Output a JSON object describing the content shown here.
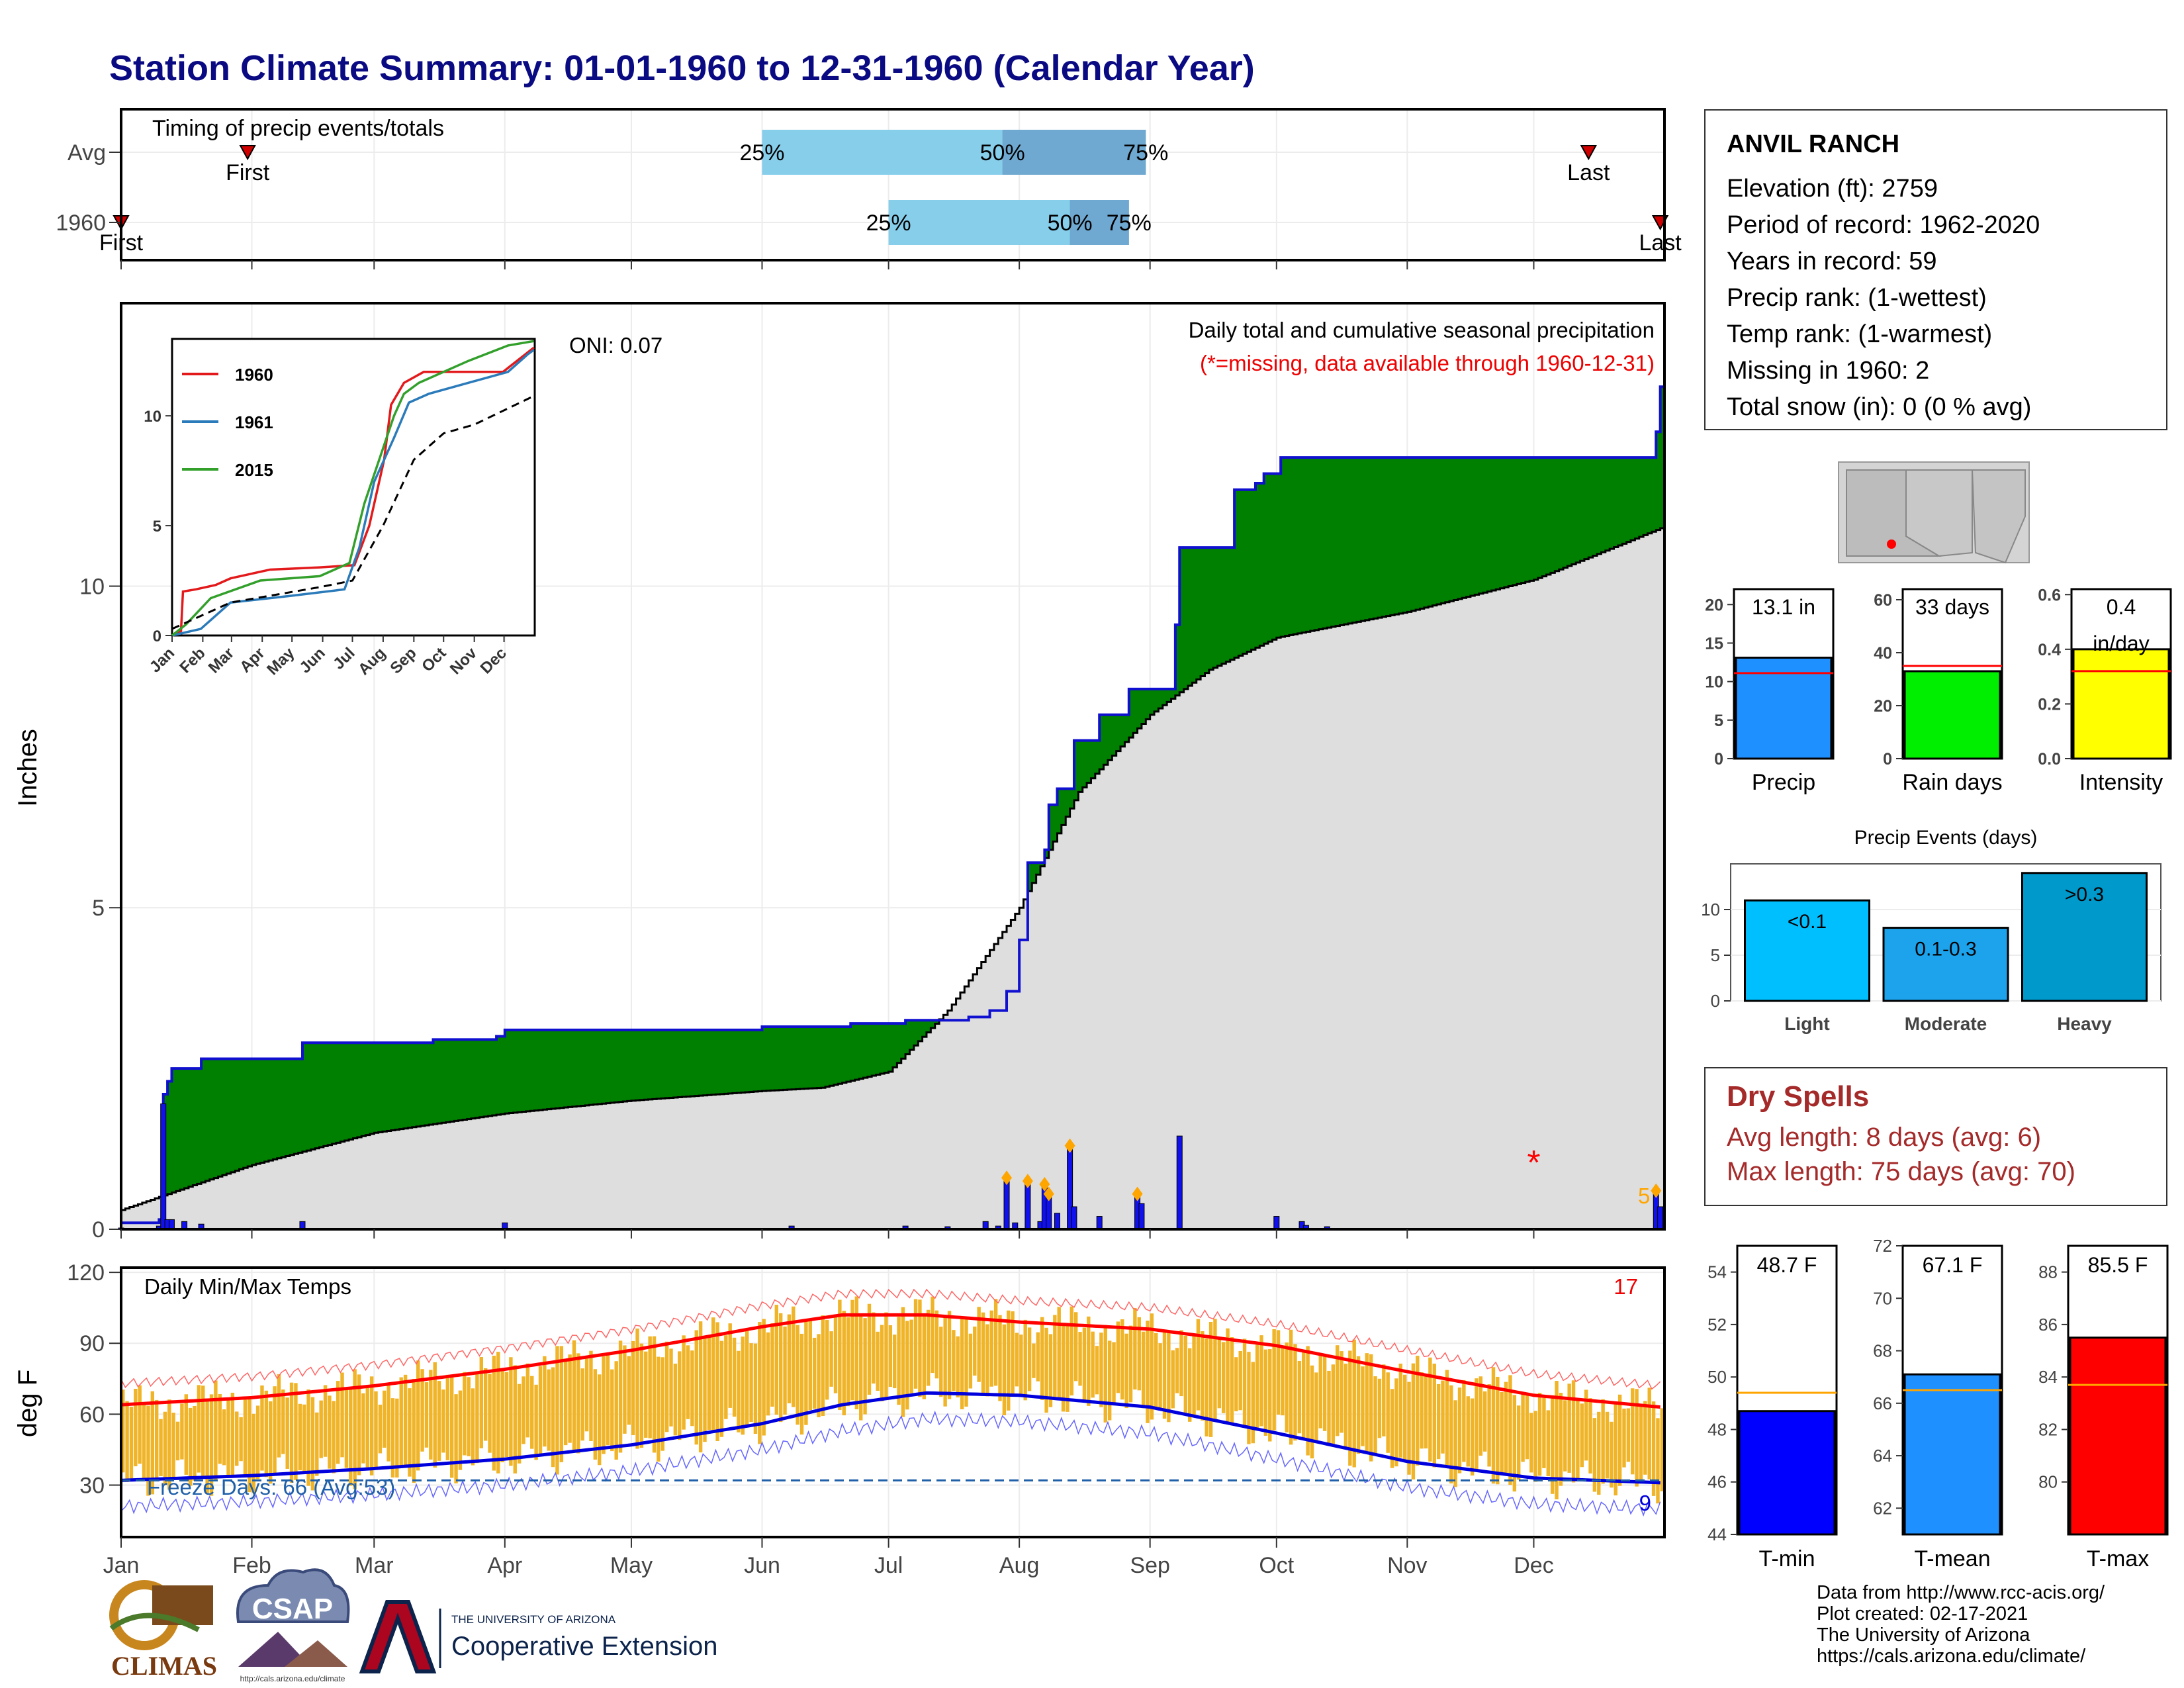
{
  "title": "Station Climate Summary: 01-01-1960 to 12-31-1960 (Calendar Year)",
  "timing_panel": {
    "title": "Timing of precip events/totals",
    "rows": [
      {
        "label": "Avg",
        "first_label": "First",
        "last_label": "Last",
        "first_date": "1960-01-31",
        "last_date": "1960-12-14",
        "p25": "1960-06-01",
        "p50": "1960-07-28",
        "p75": "1960-08-31"
      },
      {
        "label": "1960",
        "first_label": "First",
        "last_label": "Last",
        "first_date": "1960-01-01",
        "last_date": "1960-12-31",
        "p25": "1960-07-01",
        "p50": "1960-08-13",
        "p75": "1960-08-27"
      }
    ],
    "pct_labels": [
      "25%",
      "50%",
      "75%"
    ],
    "colors": {
      "outer": "#87ceeb",
      "inner": "#6fa8d0"
    }
  },
  "precip_panel": {
    "ylabel": "Inches",
    "yticks": [
      0,
      5,
      10
    ],
    "ylim": [
      0,
      14.4
    ],
    "subtitle": "Daily total and cumulative seasonal precipitation",
    "note": "(*=missing, data available through 1960-12-31)",
    "oni": "ONI: 0.07",
    "count_label": "5",
    "colors": {
      "above": "#008000",
      "below": "#8b5a00",
      "avg_fill": "#dedede",
      "line": "#1010d0",
      "missing": "#ff0000",
      "marker": "#ffa500"
    }
  },
  "inset": {
    "yticks": [
      0,
      5,
      10
    ],
    "months": [
      "Jan",
      "Feb",
      "Mar",
      "Apr",
      "May",
      "Jun",
      "Jul",
      "Aug",
      "Sep",
      "Oct",
      "Nov",
      "Dec"
    ],
    "legend": [
      {
        "name": "1960",
        "color": "#e31a1c"
      },
      {
        "name": "1961",
        "color": "#2b7bba"
      },
      {
        "name": "2015",
        "color": "#33a02c"
      }
    ]
  },
  "temp_panel": {
    "ylabel": "deg F",
    "yticks": [
      30,
      60,
      90,
      120
    ],
    "title": "Daily Min/Max Temps",
    "hot_count": "17",
    "cold_count": "9",
    "freeze_label": "Freeze Days: 66 (Avg:53)",
    "colors": {
      "bars": "#f0b428",
      "avg_max": "#ff0000",
      "avg_min": "#0000dd",
      "freeze": "#1f5fa8"
    }
  },
  "x_months": [
    "Jan",
    "Feb",
    "Mar",
    "Apr",
    "May",
    "Jun",
    "Jul",
    "Aug",
    "Sep",
    "Oct",
    "Nov",
    "Dec"
  ],
  "station": {
    "name": "ANVIL RANCH",
    "lines": [
      "Elevation (ft): 2759",
      "Period of record: 1962-2020",
      "Years in record: 59",
      "Precip rank:  (1-wettest)",
      "Temp rank:  (1-warmest)",
      "Missing in 1960: 2",
      "Total snow (in): 0 (0 % avg)"
    ]
  },
  "mini_bars": [
    {
      "label": "Precip",
      "value": 13.1,
      "avg": 11.1,
      "text": "13.1 in",
      "color": "#1e90ff",
      "yticks": [
        0,
        5,
        10,
        15,
        20
      ],
      "ymax": 22
    },
    {
      "label": "Rain days",
      "value": 33,
      "avg": 35,
      "text": "33 days",
      "color": "#00ee00",
      "yticks": [
        0,
        20,
        40,
        60
      ],
      "ymax": 64
    },
    {
      "label": "Intensity",
      "value": 0.4,
      "avg": 0.32,
      "text": "0.4\nin/day",
      "color": "#ffff00",
      "yticks": [
        "0.0",
        "0.2",
        "0.4",
        "0.6"
      ],
      "ymax": 0.62
    }
  ],
  "events": {
    "title": "Precip Events (days)",
    "categories": [
      "Light",
      "Moderate",
      "Heavy"
    ],
    "values": [
      11,
      8,
      14
    ],
    "bar_labels": [
      "<0.1",
      "0.1-0.3",
      ">0.3"
    ],
    "colors": [
      "#00bfff",
      "#1ca3ec",
      "#0099cc"
    ],
    "yticks": [
      0,
      5,
      10
    ]
  },
  "dry_spells": {
    "title": "Dry Spells",
    "lines": [
      "Avg length: 8 days (avg: 6)",
      "Max length: 75 days (avg: 70)"
    ]
  },
  "temp_bars": [
    {
      "label": "T-min",
      "value": 48.7,
      "avg": 49.4,
      "text": "48.7 F",
      "color": "#0000ff",
      "yticks": [
        44,
        46,
        48,
        50,
        52,
        54
      ],
      "ymin": 44,
      "ymax": 55
    },
    {
      "label": "T-mean",
      "value": 67.1,
      "avg": 66.5,
      "text": "67.1 F",
      "color": "#1e90ff",
      "yticks": [
        62,
        64,
        66,
        68,
        70,
        72
      ],
      "ymin": 61,
      "ymax": 72
    },
    {
      "label": "T-max",
      "value": 85.5,
      "avg": 83.7,
      "text": "85.5 F",
      "color": "#ff0000",
      "yticks": [
        80,
        82,
        84,
        86,
        88
      ],
      "ymin": 78,
      "ymax": 89
    }
  ],
  "credits": [
    "Data from http://www.rcc-acis.org/",
    "Plot created: 02-17-2021",
    "The University of Arizona",
    "https://cals.arizona.edu/climate/"
  ],
  "logos": {
    "climas": "CLIMAS",
    "csap": "CSAP",
    "csap_url": "http://cals.arizona.edu/climate",
    "ua_small": "THE UNIVERSITY OF ARIZONA",
    "ua_big": "Cooperative Extension"
  },
  "chart_data": {
    "type": "area",
    "title": "Station Climate Summary: 01-01-1960 to 12-31-1960 (Calendar Year)",
    "ylabel": "Inches",
    "ylim": [
      0,
      14.4
    ],
    "series": [
      {
        "name": "1960",
        "x": [
          "1960-01-01",
          "1960-01-10",
          "1960-01-11",
          "1960-01-12",
          "1960-01-13",
          "1960-01-20",
          "1960-02-12",
          "1960-02-13",
          "1960-03-01",
          "1960-03-15",
          "1960-03-30",
          "1960-04-01",
          "1960-05-05",
          "1960-06-01",
          "1960-06-22",
          "1960-07-01",
          "1960-07-05",
          "1960-07-15",
          "1960-07-20",
          "1960-07-25",
          "1960-07-29",
          "1960-08-01",
          "1960-08-03",
          "1960-08-07",
          "1960-08-08",
          "1960-08-10",
          "1960-08-14",
          "1960-08-20",
          "1960-08-27",
          "1960-09-07",
          "1960-09-08",
          "1960-09-21",
          "1960-09-26",
          "1960-09-28",
          "1960-10-02",
          "1960-12-29",
          "1960-12-30",
          "1960-12-31"
        ],
        "y": [
          0.1,
          0.15,
          2.1,
          2.3,
          2.5,
          2.65,
          2.65,
          2.9,
          2.9,
          2.95,
          3.0,
          3.1,
          3.1,
          3.15,
          3.2,
          3.2,
          3.25,
          3.25,
          3.3,
          3.4,
          3.7,
          4.5,
          5.7,
          5.9,
          6.6,
          6.85,
          7.6,
          8.0,
          8.4,
          9.4,
          10.6,
          11.5,
          11.6,
          11.75,
          12.0,
          12.0,
          12.4,
          13.1
        ]
      },
      {
        "name": "Avg",
        "x": [
          "1960-01-01",
          "1960-02-01",
          "1960-03-01",
          "1960-04-01",
          "1960-05-01",
          "1960-06-01",
          "1960-06-15",
          "1960-07-01",
          "1960-07-15",
          "1960-08-01",
          "1960-08-15",
          "1960-09-01",
          "1960-09-15",
          "1960-10-01",
          "1960-11-01",
          "1960-12-01",
          "1960-12-31"
        ],
        "y": [
          0.3,
          1.0,
          1.5,
          1.8,
          2.0,
          2.15,
          2.2,
          2.45,
          3.4,
          5.0,
          6.8,
          8.0,
          8.7,
          9.2,
          9.6,
          10.1,
          10.9
        ]
      }
    ],
    "daily_precip": [
      {
        "x": "1960-01-01",
        "y": 0.02
      },
      {
        "x": "1960-01-10",
        "y": 0.05
      },
      {
        "x": "1960-01-11",
        "y": 1.95
      },
      {
        "x": "1960-01-12",
        "y": 0.15
      },
      {
        "x": "1960-01-13",
        "y": 0.15
      },
      {
        "x": "1960-01-16",
        "y": 0.12
      },
      {
        "x": "1960-01-20",
        "y": 0.08
      },
      {
        "x": "1960-02-13",
        "y": 0.12
      },
      {
        "x": "1960-04-01",
        "y": 0.1
      },
      {
        "x": "1960-06-08",
        "y": 0.05
      },
      {
        "x": "1960-07-05",
        "y": 0.05
      },
      {
        "x": "1960-07-15",
        "y": 0.04
      },
      {
        "x": "1960-07-24",
        "y": 0.12
      },
      {
        "x": "1960-07-27",
        "y": 0.05
      },
      {
        "x": "1960-07-29",
        "y": 0.8
      },
      {
        "x": "1960-07-31",
        "y": 0.1
      },
      {
        "x": "1960-08-03",
        "y": 0.75
      },
      {
        "x": "1960-08-06",
        "y": 0.12
      },
      {
        "x": "1960-08-07",
        "y": 0.7
      },
      {
        "x": "1960-08-08",
        "y": 0.55
      },
      {
        "x": "1960-08-10",
        "y": 0.25
      },
      {
        "x": "1960-08-13",
        "y": 1.3
      },
      {
        "x": "1960-08-14",
        "y": 0.35
      },
      {
        "x": "1960-08-20",
        "y": 0.2
      },
      {
        "x": "1960-08-29",
        "y": 0.55
      },
      {
        "x": "1960-08-30",
        "y": 0.4
      },
      {
        "x": "1960-09-08",
        "y": 1.45
      },
      {
        "x": "1960-10-01",
        "y": 0.2
      },
      {
        "x": "1960-10-07",
        "y": 0.12
      },
      {
        "x": "1960-10-08",
        "y": 0.06
      },
      {
        "x": "1960-10-13",
        "y": 0.04
      },
      {
        "x": "1960-12-30",
        "y": 0.6
      },
      {
        "x": "1960-12-31",
        "y": 0.35
      }
    ],
    "temp_normals": {
      "avg_max": {
        "x": [
          "Jan 1",
          "Feb 1",
          "Mar 1",
          "Apr 1",
          "May 1",
          "Jun 1",
          "Jun 20",
          "Jul 10",
          "Aug 1",
          "Sep 1",
          "Oct 1",
          "Nov 1",
          "Dec 1",
          "Dec 31"
        ],
        "y": [
          64,
          67,
          72,
          79,
          87,
          97,
          102,
          102,
          99,
          96,
          89,
          78,
          68,
          63
        ]
      },
      "avg_min": {
        "x": [
          "Jan 1",
          "Feb 1",
          "Mar 1",
          "Apr 1",
          "May 1",
          "Jun 1",
          "Jun 20",
          "Jul 10",
          "Aug 1",
          "Sep 1",
          "Oct 1",
          "Nov 1",
          "Dec 1",
          "Dec 31"
        ],
        "y": [
          32,
          34,
          37,
          41,
          47,
          56,
          64,
          69,
          68,
          63,
          52,
          40,
          33,
          31
        ]
      }
    }
  }
}
